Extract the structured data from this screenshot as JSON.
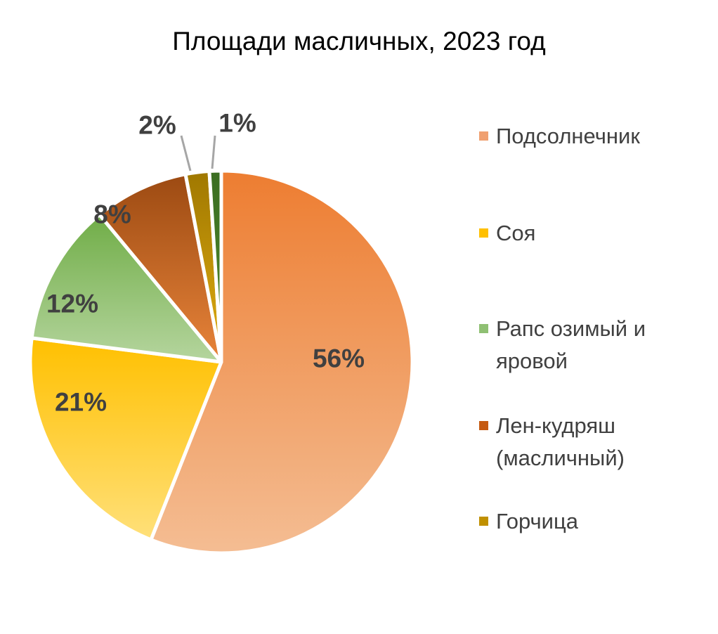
{
  "chart_data": {
    "type": "pie",
    "title": "Площади масличных, 2023 год",
    "slices": [
      {
        "label": "Подсолнечник",
        "value": 56,
        "display": "56%",
        "color_light": "#f4bd93",
        "color_dark": "#ed7d31"
      },
      {
        "label": "Соя",
        "value": 21,
        "display": "21%",
        "color_light": "#ffe07a",
        "color_dark": "#ffc000"
      },
      {
        "label": "Рапс озимый и яровой",
        "value": 12,
        "display": "12%",
        "color_light": "#b5d59e",
        "color_dark": "#70ad47"
      },
      {
        "label": "Лен-кудряш (масличный)",
        "value": 8,
        "display": "8%",
        "color_light": "#e8843a",
        "color_dark": "#9c4a12"
      },
      {
        "label": "Горчица",
        "value": 2,
        "display": "2%",
        "color_light": "#e0ad12",
        "color_dark": "#a07800"
      },
      {
        "label": "",
        "value": 1,
        "display": "1%",
        "color_light": "#4e8a2c",
        "color_dark": "#3b6e22"
      }
    ],
    "legend_position": "right",
    "data_label_color": "#404040"
  },
  "legend": {
    "items": [
      {
        "lines": [
          "Подсолнечник"
        ],
        "color": "#f0a070"
      },
      {
        "lines": [
          "Соя"
        ],
        "color": "#ffc000"
      },
      {
        "lines": [
          "Рапс озимый и",
          "яровой"
        ],
        "color": "#8fc073"
      },
      {
        "lines": [
          "Лен-кудряш",
          "(масличный)"
        ],
        "color": "#c55a11"
      },
      {
        "lines": [
          "Горчица"
        ],
        "color": "#c09000"
      }
    ]
  }
}
